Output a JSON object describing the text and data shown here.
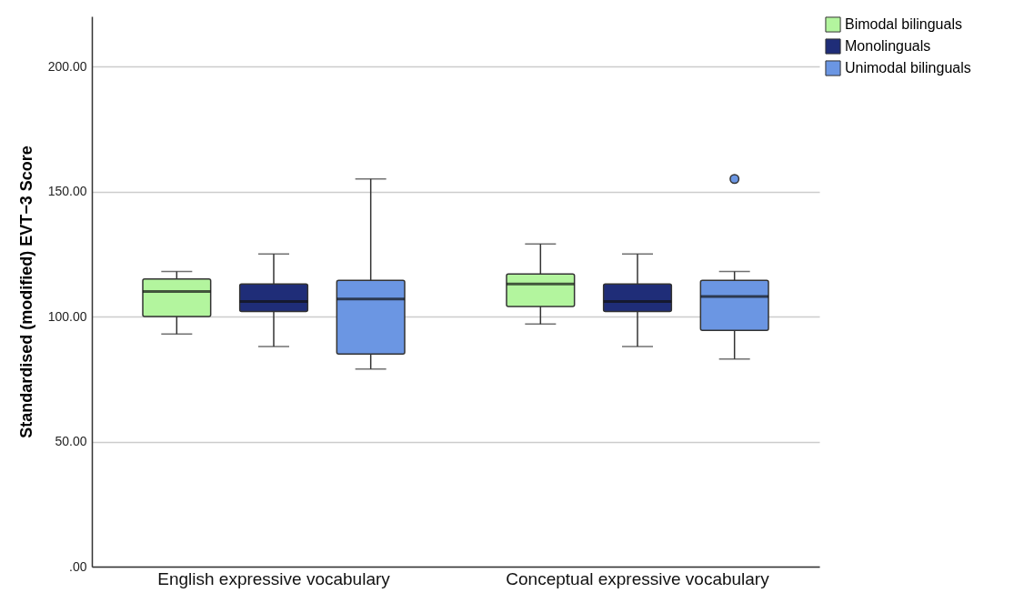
{
  "chart_data": {
    "type": "box",
    "ylabel": "Standardised (modified) EVT−3 Score",
    "categories": [
      "English expressive vocabulary",
      "Conceptual expressive vocabulary"
    ],
    "series": [
      {
        "name": "Bimodal bilinguals",
        "color": "#b3f59e",
        "boxes": [
          {
            "low": 93,
            "q1": 100,
            "median": 110,
            "q3": 115,
            "high": 118
          },
          {
            "low": 97,
            "q1": 104,
            "median": 113,
            "q3": 117,
            "high": 129
          }
        ]
      },
      {
        "name": "Monolinguals",
        "color": "#1f2d78",
        "boxes": [
          {
            "low": 88,
            "q1": 102,
            "median": 106,
            "q3": 113,
            "high": 125
          },
          {
            "low": 88,
            "q1": 102,
            "median": 106,
            "q3": 113,
            "high": 125
          }
        ]
      },
      {
        "name": "Unimodal bilinguals",
        "color": "#6b96e3",
        "boxes": [
          {
            "low": 79,
            "q1": 85,
            "median": 107,
            "q3": 114.5,
            "high": 155
          },
          {
            "low": 83,
            "q1": 94.5,
            "median": 108,
            "q3": 114.5,
            "high": 118,
            "outliers": [
              155
            ]
          }
        ]
      }
    ],
    "ylim": [
      0,
      220
    ],
    "yticks": [
      {
        "value": 0,
        "label": ".00"
      },
      {
        "value": 50,
        "label": "50.00"
      },
      {
        "value": 100,
        "label": "100.00"
      },
      {
        "value": 150,
        "label": "150.00"
      },
      {
        "value": 200,
        "label": "200.00"
      }
    ],
    "grid": "y",
    "legend": "top right"
  }
}
